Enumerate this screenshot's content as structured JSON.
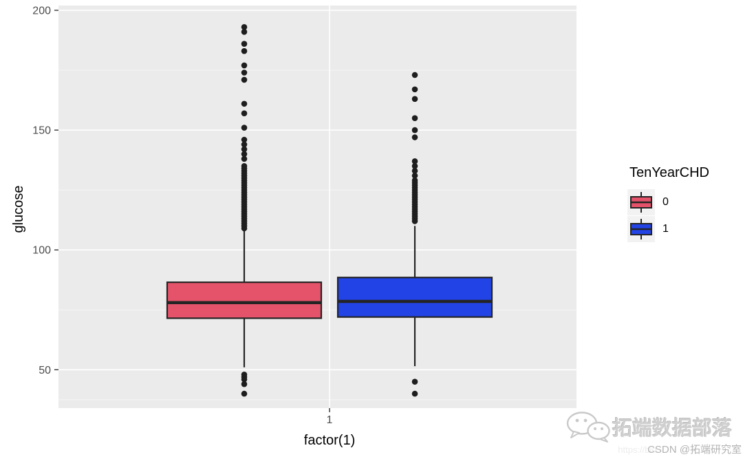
{
  "chart_data": {
    "type": "boxplot",
    "title": "",
    "xlabel": "factor(1)",
    "ylabel": "glucose",
    "x_tick_label": "1",
    "ylim": [
      34,
      202
    ],
    "yticks": [
      50,
      100,
      150,
      200
    ],
    "yminor": [
      37.5,
      75,
      125,
      175
    ],
    "grid": true,
    "panel_bg": "#EBEBEB",
    "grid_color": "#FFFFFF",
    "box_stroke": "#242424",
    "outlier_color": "#1E1E1E",
    "tick_label_color": "#4D4D4D",
    "legend": {
      "title": "TenYearCHD",
      "position": "right",
      "entries": [
        {
          "label": "0",
          "color": "#E4536A"
        },
        {
          "label": "1",
          "color": "#2243E5"
        }
      ]
    },
    "series": [
      {
        "name": "0",
        "fill": "#E4536A",
        "whisker_low": 51,
        "q1": 71.5,
        "median": 78,
        "q3": 86.5,
        "whisker_high": 108.5,
        "outliers_high": [
          193,
          191,
          186,
          183,
          177,
          174,
          171,
          161,
          157,
          151,
          146,
          144,
          142,
          140,
          138,
          135,
          134,
          133,
          132,
          131,
          130,
          129,
          128,
          127,
          126,
          125,
          124,
          123,
          122,
          121,
          120,
          119,
          118,
          117,
          116,
          115,
          114,
          113,
          112,
          111,
          110,
          109
        ],
        "outliers_low": [
          48,
          47,
          46,
          44,
          40
        ]
      },
      {
        "name": "1",
        "fill": "#2243E5",
        "whisker_low": 51.5,
        "q1": 72,
        "median": 78.5,
        "q3": 88.5,
        "whisker_high": 110,
        "outliers_high": [
          173,
          167,
          163,
          155,
          150,
          147,
          137,
          135,
          133,
          131,
          129,
          128,
          127,
          126,
          125,
          124,
          123,
          122,
          121,
          120,
          119,
          118,
          117,
          116,
          115,
          114,
          113,
          112
        ],
        "outliers_low": [
          45,
          40
        ]
      }
    ]
  },
  "watermark": {
    "brand": "拓端数据部落",
    "url_fragment": "https://blo",
    "credit": "CSDN @拓端研究室"
  }
}
